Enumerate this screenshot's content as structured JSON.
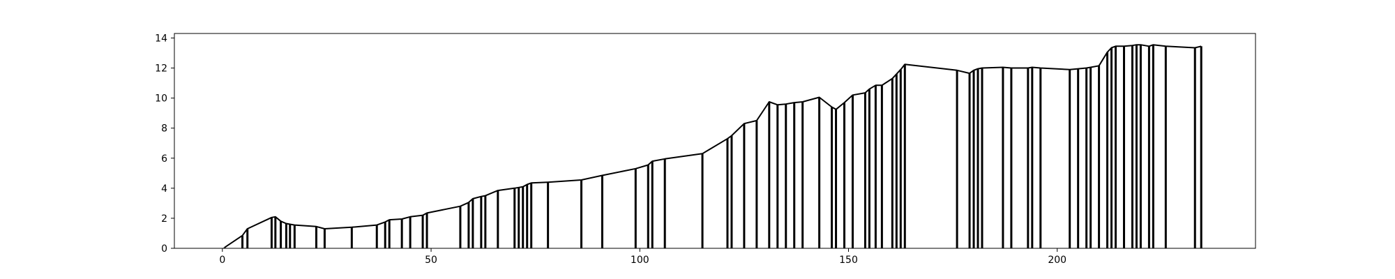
{
  "chart_data": {
    "type": "line",
    "title": "",
    "xlabel": "",
    "ylabel": "",
    "xlim": [
      -11.5,
      247.5
    ],
    "ylim": [
      0,
      14.3
    ],
    "grid": false,
    "legend": "none",
    "colors": {
      "line": "#000000",
      "frame": "#000000",
      "background": "#ffffff"
    },
    "x_ticks": [
      0,
      50,
      100,
      150,
      200
    ],
    "y_ticks": [
      0,
      2,
      4,
      6,
      8,
      10,
      12,
      14
    ],
    "x_tick_labels": [
      "0",
      "50",
      "100",
      "150",
      "200"
    ],
    "y_tick_labels": [
      "0",
      "2",
      "4",
      "6",
      "8",
      "10",
      "12",
      "14"
    ],
    "series": [
      {
        "x": [
          0.5,
          4.8,
          6.0,
          11.8,
          12.7,
          14.0,
          15.3,
          16.2,
          17.3,
          22.5,
          24.5,
          31.0,
          37.0,
          39.0,
          40.0,
          43.0,
          45.0,
          48.0,
          49.0,
          57.0,
          59.0,
          60.0,
          62.0,
          63.0,
          66.0,
          70.0,
          71.0,
          72.0,
          73.0,
          74.0,
          78.0,
          86.0,
          91.0,
          99.0,
          102.0,
          103.0,
          106.0,
          115.0,
          121.0,
          122.0,
          125.0,
          128.0,
          131.0,
          133.0,
          135.0,
          137.0,
          139.0,
          143.0,
          146.0,
          147.0,
          149.0,
          151.0,
          154.0,
          155.0,
          156.5,
          158.0,
          160.5,
          161.5,
          162.5,
          163.5,
          176.0,
          179.0,
          180.0,
          181.0,
          182.0,
          187.0,
          189.0,
          193.0,
          194.0,
          196.0,
          203.0,
          205.0,
          207.0,
          208.0,
          210.0,
          212.0,
          213.0,
          214.0,
          216.0,
          218.0,
          219.0,
          220.0,
          222.0,
          223.0,
          226.0,
          233.0,
          234.5
        ],
        "y": [
          0.05,
          0.85,
          1.3,
          2.05,
          2.1,
          1.8,
          1.65,
          1.6,
          1.55,
          1.45,
          1.3,
          1.4,
          1.55,
          1.75,
          1.9,
          1.95,
          2.1,
          2.2,
          2.35,
          2.8,
          3.05,
          3.3,
          3.45,
          3.5,
          3.85,
          4.0,
          4.05,
          4.1,
          4.25,
          4.35,
          4.4,
          4.55,
          4.85,
          5.3,
          5.55,
          5.8,
          5.95,
          6.3,
          7.3,
          7.5,
          8.3,
          8.5,
          9.75,
          9.55,
          9.6,
          9.7,
          9.75,
          10.05,
          9.4,
          9.25,
          9.7,
          10.2,
          10.35,
          10.6,
          10.85,
          10.85,
          11.3,
          11.6,
          11.9,
          12.25,
          11.85,
          11.65,
          11.85,
          11.95,
          12.0,
          12.05,
          12.0,
          12.0,
          12.05,
          12.0,
          11.9,
          11.95,
          12.0,
          12.05,
          12.15,
          13.05,
          13.35,
          13.45,
          13.45,
          13.5,
          13.55,
          13.55,
          13.45,
          13.55,
          13.45,
          13.35,
          13.45
        ]
      }
    ]
  }
}
